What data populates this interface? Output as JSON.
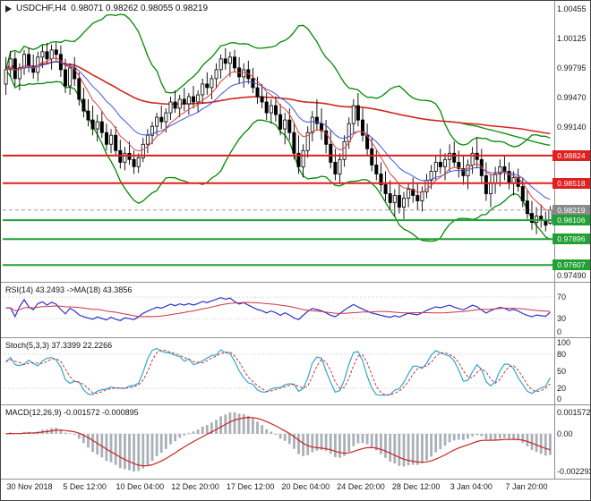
{
  "title": {
    "symbol_period": "USDCHF,H4",
    "ohlc": "0.98071 0.98262 0.98055 0.98219"
  },
  "colors": {
    "candle_up": "#ffffff",
    "candle_down": "#000000",
    "candle_outline": "#000000",
    "bollinger": "#008a00",
    "ma_long_red": "#dd2222",
    "ma_long_green": "#139413",
    "ema_fast_red": "#e04040",
    "ema_fast_blue": "#4056d8",
    "resistance": "#e01f1f",
    "support": "#21a033",
    "current_price": "#9a9a9a",
    "badge_resistance": "#e01f1f",
    "badge_support": "#21a033",
    "badge_current": "#8a8a8a",
    "rsi_line": "#2a35c8",
    "rsi_ma": "#cc3344",
    "stoch_k": "#2fa8cc",
    "stoch_d": "#cc3344",
    "macd_hist": "#aab0b8",
    "macd_signal": "#cc2222",
    "grid_dotted": "#c8c8c8",
    "separator": "#8f8f8f",
    "outer_border": "#444444"
  },
  "chart_data": {
    "type": "candlestick",
    "symbol": "USDCHF",
    "timeframe": "H4",
    "x_labels": [
      "30 Nov 2018",
      "5 Dec 12:00",
      "10 Dec 04:00",
      "12 Dec 20:00",
      "17 Dec 12:00",
      "20 Dec 04:00",
      "24 Dec 20:00",
      "28 Dec 12:00",
      "3 Jan 04:00",
      "7 Jan 20:00"
    ],
    "main": {
      "ylim": [
        0.9742,
        1.00535
      ],
      "bollinger": {
        "window": 20,
        "mult": 2.3
      },
      "ma_long": {
        "green_window": 100,
        "red_window": 130
      },
      "ema_fast": {
        "red_window": 8,
        "blue_window": 16
      },
      "levels": {
        "resistance": [
          0.98824,
          0.98518
        ],
        "support": [
          0.98106,
          0.97896,
          0.97607
        ],
        "current": 0.98219
      },
      "axis_ticks": [
        {
          "label": "1.00455",
          "price": 1.00455
        },
        {
          "label": "1.00125",
          "price": 1.00125
        },
        {
          "label": "0.99795",
          "price": 0.99795
        },
        {
          "label": "0.99470",
          "price": 0.9947
        },
        {
          "label": "0.99140",
          "price": 0.9914
        },
        {
          "label": "0.97490",
          "price": 0.9749
        }
      ],
      "badges": [
        {
          "label": "0.98824",
          "price": 0.98824,
          "kind": "resistance"
        },
        {
          "label": "0.98518",
          "price": 0.98518,
          "kind": "resistance"
        },
        {
          "label": "0.98219",
          "price": 0.98219,
          "kind": "current"
        },
        {
          "label": "0.98106",
          "price": 0.98106,
          "kind": "support"
        },
        {
          "label": "0.97896",
          "price": 0.97896,
          "kind": "support"
        },
        {
          "label": "0.97607",
          "price": 0.97607,
          "kind": "support"
        }
      ],
      "candles": [
        [
          0.9962,
          0.9992,
          0.995,
          0.9978
        ],
        [
          0.9978,
          0.9999,
          0.997,
          0.999
        ],
        [
          0.999,
          0.9998,
          0.996,
          0.9968
        ],
        [
          0.9968,
          0.9985,
          0.9955,
          0.998
        ],
        [
          0.998,
          1.0,
          0.9972,
          0.9995
        ],
        [
          0.9995,
          1.0002,
          0.9975,
          0.9982
        ],
        [
          0.9982,
          0.9995,
          0.9968,
          0.9975
        ],
        [
          0.9975,
          0.9998,
          0.9965,
          0.9992
        ],
        [
          0.9992,
          1.0005,
          0.998,
          0.9998
        ],
        [
          0.9998,
          1.0008,
          0.9985,
          0.999
        ],
        [
          0.999,
          1.0006,
          0.9978,
          1.0
        ],
        [
          1.0,
          1.0008,
          0.9988,
          0.9995
        ],
        [
          0.9995,
          1.0005,
          0.997,
          0.9978
        ],
        [
          0.9978,
          0.999,
          0.9952,
          0.996
        ],
        [
          0.996,
          0.9985,
          0.995,
          0.998
        ],
        [
          0.998,
          0.9992,
          0.996,
          0.9968
        ],
        [
          0.9968,
          0.9975,
          0.9938,
          0.9945
        ],
        [
          0.9945,
          0.9958,
          0.9925,
          0.9932
        ],
        [
          0.9932,
          0.9945,
          0.9915,
          0.9922
        ],
        [
          0.9922,
          0.9938,
          0.9905,
          0.9912
        ],
        [
          0.9912,
          0.9928,
          0.9898,
          0.992
        ],
        [
          0.992,
          0.9932,
          0.9902,
          0.9908
        ],
        [
          0.9908,
          0.9918,
          0.9888,
          0.9895
        ],
        [
          0.9895,
          0.9912,
          0.9885,
          0.9905
        ],
        [
          0.9905,
          0.9915,
          0.9882,
          0.9888
        ],
        [
          0.9888,
          0.99,
          0.9868,
          0.9875
        ],
        [
          0.9875,
          0.9892,
          0.9866,
          0.9885
        ],
        [
          0.9885,
          0.9898,
          0.9872,
          0.9878
        ],
        [
          0.9878,
          0.9888,
          0.9862,
          0.987
        ],
        [
          0.987,
          0.9885,
          0.9863,
          0.988
        ],
        [
          0.988,
          0.9902,
          0.9875,
          0.9895
        ],
        [
          0.9895,
          0.9912,
          0.9885,
          0.9905
        ],
        [
          0.9905,
          0.992,
          0.9895,
          0.9915
        ],
        [
          0.9915,
          0.993,
          0.9905,
          0.9925
        ],
        [
          0.9925,
          0.9938,
          0.9912,
          0.992
        ],
        [
          0.992,
          0.9935,
          0.9908,
          0.993
        ],
        [
          0.993,
          0.9948,
          0.9922,
          0.9942
        ],
        [
          0.9942,
          0.9955,
          0.993,
          0.9935
        ],
        [
          0.9935,
          0.995,
          0.9925,
          0.9945
        ],
        [
          0.9945,
          0.9958,
          0.9932,
          0.994
        ],
        [
          0.994,
          0.9952,
          0.9928,
          0.9948
        ],
        [
          0.9948,
          0.996,
          0.9935,
          0.9942
        ],
        [
          0.9942,
          0.9955,
          0.993,
          0.995
        ],
        [
          0.995,
          0.9968,
          0.994,
          0.9962
        ],
        [
          0.9962,
          0.9975,
          0.995,
          0.9958
        ],
        [
          0.9958,
          0.9972,
          0.9945,
          0.9968
        ],
        [
          0.9968,
          0.9985,
          0.9958,
          0.9978
        ],
        [
          0.9978,
          0.9995,
          0.9968,
          0.999
        ],
        [
          0.999,
          1.0002,
          0.9978,
          0.9985
        ],
        [
          0.9985,
          0.9998,
          0.997,
          0.9992
        ],
        [
          0.9992,
          1.0,
          0.9975,
          0.998
        ],
        [
          0.998,
          0.9992,
          0.9962,
          0.997
        ],
        [
          0.997,
          0.9985,
          0.9958,
          0.9978
        ],
        [
          0.9978,
          0.9988,
          0.9962,
          0.9968
        ],
        [
          0.9968,
          0.998,
          0.9952,
          0.9958
        ],
        [
          0.9958,
          0.997,
          0.994,
          0.9948
        ],
        [
          0.9948,
          0.9962,
          0.9935,
          0.9942
        ],
        [
          0.9942,
          0.9952,
          0.9922,
          0.993
        ],
        [
          0.993,
          0.9945,
          0.9918,
          0.9938
        ],
        [
          0.9938,
          0.9948,
          0.992,
          0.9928
        ],
        [
          0.9928,
          0.994,
          0.9905,
          0.9912
        ],
        [
          0.9912,
          0.993,
          0.9895,
          0.9922
        ],
        [
          0.9922,
          0.9935,
          0.99,
          0.9908
        ],
        [
          0.9908,
          0.992,
          0.9878,
          0.9885
        ],
        [
          0.9885,
          0.9905,
          0.9862,
          0.987
        ],
        [
          0.987,
          0.9895,
          0.9858,
          0.9888
        ],
        [
          0.9888,
          0.9915,
          0.988,
          0.9908
        ],
        [
          0.9908,
          0.9932,
          0.9898,
          0.9925
        ],
        [
          0.9925,
          0.9945,
          0.991,
          0.9918
        ],
        [
          0.9918,
          0.9935,
          0.99,
          0.991
        ],
        [
          0.991,
          0.9922,
          0.9885,
          0.9895
        ],
        [
          0.9895,
          0.991,
          0.9868,
          0.9875
        ],
        [
          0.9875,
          0.989,
          0.9855,
          0.9862
        ],
        [
          0.9862,
          0.9885,
          0.9852,
          0.9878
        ],
        [
          0.9878,
          0.9905,
          0.987,
          0.9898
        ],
        [
          0.9898,
          0.9925,
          0.989,
          0.9918
        ],
        [
          0.9918,
          0.9945,
          0.9908,
          0.9938
        ],
        [
          0.9938,
          0.9952,
          0.9915,
          0.9922
        ],
        [
          0.9922,
          0.9935,
          0.9898,
          0.9905
        ],
        [
          0.9905,
          0.9918,
          0.9882,
          0.989
        ],
        [
          0.989,
          0.9902,
          0.9865,
          0.9872
        ],
        [
          0.9872,
          0.9888,
          0.9855,
          0.9862
        ],
        [
          0.9862,
          0.9875,
          0.9842,
          0.985
        ],
        [
          0.985,
          0.9865,
          0.9832,
          0.984
        ],
        [
          0.984,
          0.9855,
          0.9822,
          0.983
        ],
        [
          0.983,
          0.9845,
          0.9815,
          0.9838
        ],
        [
          0.9838,
          0.985,
          0.9818,
          0.9825
        ],
        [
          0.9825,
          0.9842,
          0.9812,
          0.9835
        ],
        [
          0.9835,
          0.9852,
          0.9825,
          0.9845
        ],
        [
          0.9845,
          0.9858,
          0.983,
          0.9838
        ],
        [
          0.9838,
          0.9852,
          0.9822,
          0.9832
        ],
        [
          0.9832,
          0.9848,
          0.982,
          0.9842
        ],
        [
          0.9842,
          0.9862,
          0.9835,
          0.9855
        ],
        [
          0.9855,
          0.9872,
          0.9845,
          0.9865
        ],
        [
          0.9865,
          0.9882,
          0.9855,
          0.9875
        ],
        [
          0.9875,
          0.989,
          0.9862,
          0.987
        ],
        [
          0.987,
          0.9885,
          0.9855,
          0.9878
        ],
        [
          0.9878,
          0.9895,
          0.9865,
          0.9885
        ],
        [
          0.9885,
          0.9898,
          0.987,
          0.9875
        ],
        [
          0.9875,
          0.9888,
          0.9858,
          0.9868
        ],
        [
          0.9868,
          0.9882,
          0.985,
          0.986
        ],
        [
          0.986,
          0.9878,
          0.9845,
          0.9872
        ],
        [
          0.9872,
          0.9892,
          0.9862,
          0.9885
        ],
        [
          0.9885,
          0.9902,
          0.9868,
          0.9878
        ],
        [
          0.9878,
          0.989,
          0.9852,
          0.986
        ],
        [
          0.986,
          0.9875,
          0.9832,
          0.984
        ],
        [
          0.984,
          0.9862,
          0.9825,
          0.9852
        ],
        [
          0.9852,
          0.987,
          0.984,
          0.9862
        ],
        [
          0.9862,
          0.9878,
          0.9848,
          0.987
        ],
        [
          0.987,
          0.9882,
          0.9855,
          0.9865
        ],
        [
          0.9865,
          0.9875,
          0.9845,
          0.9852
        ],
        [
          0.9852,
          0.9865,
          0.9838,
          0.9858
        ],
        [
          0.9858,
          0.9868,
          0.9842,
          0.9848
        ],
        [
          0.9848,
          0.9858,
          0.9825,
          0.9832
        ],
        [
          0.9832,
          0.9845,
          0.9812,
          0.9818
        ],
        [
          0.9818,
          0.9832,
          0.98,
          0.9808
        ],
        [
          0.9808,
          0.9825,
          0.9795,
          0.9815
        ],
        [
          0.9815,
          0.9828,
          0.9802,
          0.981
        ],
        [
          0.981,
          0.982,
          0.9798,
          0.9805
        ],
        [
          0.98071,
          0.98262,
          0.98055,
          0.98219
        ]
      ]
    },
    "rsi": {
      "label": "RSI(14) 43.2493   ->MA(18) 43.3856",
      "period": 14,
      "ma_period": 18,
      "ylim": [
        -5,
        97
      ],
      "levels": [
        30,
        70
      ],
      "ticks": [
        {
          "label": "70",
          "value": 70
        },
        {
          "label": "30",
          "value": 30
        },
        {
          "label": "0",
          "value": 0
        }
      ]
    },
    "stoch": {
      "label": "Stoch(5,3,3) 37.3399 22.2266",
      "k_period": 5,
      "slowing": 3,
      "d_period": 3,
      "ylim": [
        -8,
        108
      ],
      "levels": [
        20,
        80
      ],
      "ticks": [
        {
          "label": "100",
          "value": 100
        },
        {
          "label": "80",
          "value": 80
        },
        {
          "label": "50",
          "value": 50
        },
        {
          "label": "20",
          "value": 20
        },
        {
          "label": "0",
          "value": 0
        }
      ]
    },
    "macd": {
      "label": "MACD(12,26,9) -0.001572 -0.000895",
      "fast": 12,
      "slow": 26,
      "signal": 9,
      "ticks": [
        {
          "label": "0.0015727",
          "at": "top"
        },
        {
          "label": "0.00",
          "at": "zero"
        },
        {
          "label": "-0.0022933",
          "at": "bottom"
        }
      ]
    }
  }
}
